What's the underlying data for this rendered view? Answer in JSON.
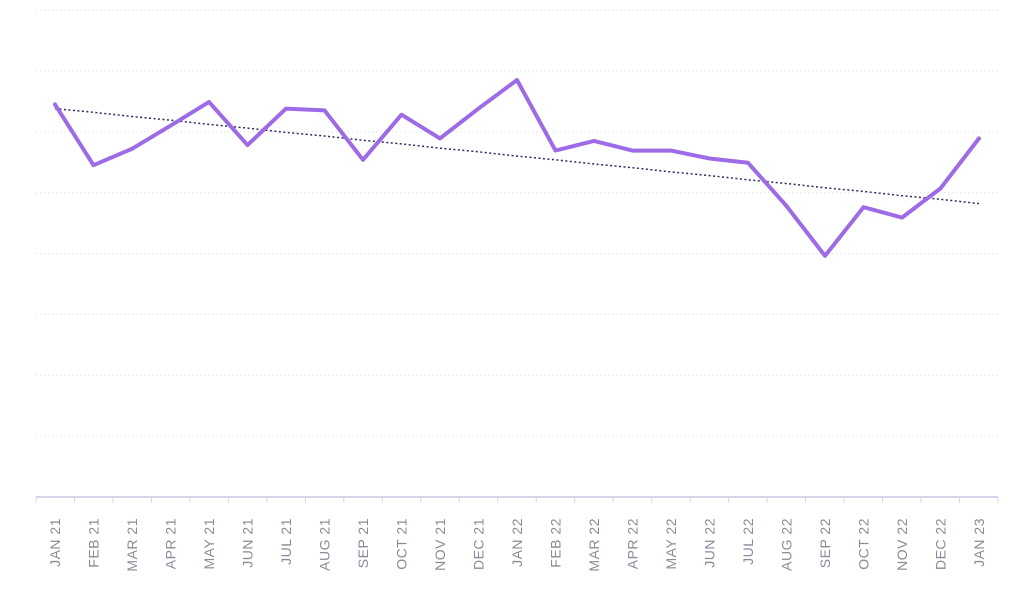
{
  "chart_data": {
    "type": "line",
    "categories": [
      "JAN 21",
      "FEB 21",
      "MAR 21",
      "APR 21",
      "MAY 21",
      "JUN 21",
      "JUL 21",
      "AUG 21",
      "SEP 21",
      "OCT 21",
      "NOV 21",
      "DEC 21",
      "JAN 22",
      "FEB 22",
      "MAR 22",
      "APR 22",
      "MAY 22",
      "JUN 22",
      "JUL 22",
      "AUG 22",
      "SEP 22",
      "OCT 22",
      "NOV 22",
      "DEC 22",
      "JAN 23"
    ],
    "series": [
      {
        "values": [
          64.5,
          54.5,
          57.2,
          61.0,
          64.9,
          57.8,
          63.8,
          63.5,
          55.4,
          62.8,
          58.9,
          63.8,
          68.5,
          56.9,
          58.5,
          56.9,
          56.9,
          55.6,
          54.9,
          47.8,
          39.6,
          47.6,
          45.9,
          50.7,
          58.9
        ]
      },
      {
        "values": [
          63.8,
          63.2,
          62.5,
          61.9,
          61.2,
          60.6,
          59.9,
          59.3,
          58.6,
          58.0,
          57.3,
          56.7,
          56.0,
          55.4,
          54.7,
          54.1,
          53.4,
          52.8,
          52.1,
          51.5,
          50.8,
          50.2,
          49.5,
          48.9,
          48.2
        ]
      }
    ],
    "ylim": [
      0,
      80
    ],
    "grid": true,
    "legend": "none",
    "colors": {
      "series": "#9e6be6",
      "trend": "#2e2a5e",
      "grid": "#dcdce6",
      "axis": "#d6d6ea",
      "tick_label": "#8a8a9a"
    }
  }
}
